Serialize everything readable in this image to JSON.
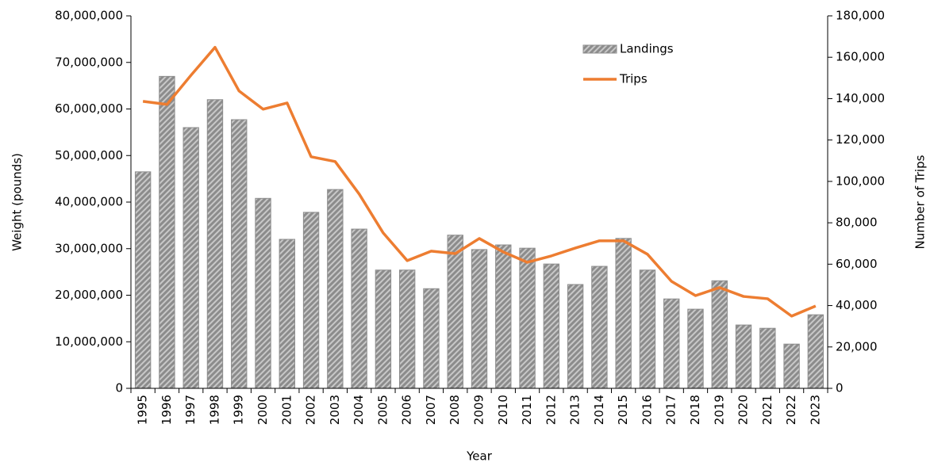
{
  "chart_data": {
    "type": "bar-line",
    "x_label": "Year",
    "y_label": "Weight (pounds)",
    "y2_label": "Number of Trips",
    "categories": [
      "1995",
      "1996",
      "1997",
      "1998",
      "1999",
      "2000",
      "2001",
      "2002",
      "2003",
      "2004",
      "2005",
      "2006",
      "2007",
      "2008",
      "2009",
      "2010",
      "2011",
      "2012",
      "2013",
      "2014",
      "2015",
      "2016",
      "2017",
      "2018",
      "2019",
      "2020",
      "2021",
      "2022",
      "2023"
    ],
    "series": [
      {
        "name": "Landings",
        "type": "bar",
        "color": "#8c8c8c",
        "values": [
          46500000,
          67000000,
          56000000,
          62000000,
          57700000,
          40800000,
          32000000,
          37800000,
          42700000,
          34200000,
          25400000,
          25400000,
          21400000,
          32900000,
          29800000,
          30800000,
          30100000,
          26700000,
          22300000,
          26200000,
          32200000,
          25400000,
          19200000,
          17000000,
          23100000,
          13600000,
          12900000,
          9500000,
          15800000
        ]
      },
      {
        "name": "Trips",
        "type": "line",
        "axis": "y2",
        "color": "#ed7d31",
        "values": [
          138700,
          137200,
          151300,
          164800,
          143700,
          134900,
          137900,
          111900,
          109600,
          93900,
          75100,
          61700,
          66300,
          65100,
          72400,
          65900,
          60900,
          64000,
          67800,
          71300,
          71300,
          64800,
          51700,
          44800,
          48700,
          44400,
          43300,
          34900,
          39800
        ]
      }
    ],
    "ylim": [
      0,
      80000000
    ],
    "yticks": [
      0,
      {
        "value": 10000000,
        "label": "10,000,000"
      },
      {
        "value": 20000000,
        "label": "20,000,000"
      },
      {
        "value": 30000000,
        "label": "30,000,000"
      },
      {
        "value": 40000000,
        "label": "40,000,000"
      },
      {
        "value": 50000000,
        "label": "50,000,000"
      },
      {
        "value": 60000000,
        "label": "60,000,000"
      },
      {
        "value": 70000000,
        "label": "70,000,000"
      },
      {
        "value": 80000000,
        "label": "80,000,000"
      }
    ],
    "y2lim": [
      0,
      180000
    ],
    "y2ticks": [
      0,
      {
        "value": 20000,
        "label": "20,000"
      },
      {
        "value": 40000,
        "label": "40,000"
      },
      {
        "value": 60000,
        "label": "60,000"
      },
      {
        "value": 80000,
        "label": "80,000"
      },
      {
        "value": 100000,
        "label": "100,000"
      },
      {
        "value": 120000,
        "label": "120,000"
      },
      {
        "value": 140000,
        "label": "140,000"
      },
      {
        "value": 160000,
        "label": "160,000"
      },
      {
        "value": 180000,
        "label": "180,000"
      }
    ],
    "legend": "top-right"
  }
}
